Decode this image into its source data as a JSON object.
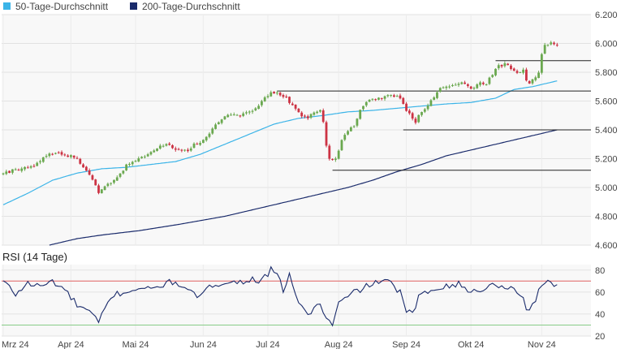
{
  "chart_data": [
    {
      "type": "candlestick",
      "legend": [
        {
          "name": "50-Tage-Durchschnitt",
          "color": "#3bb4e8"
        },
        {
          "name": "200-Tage-Durchschnitt",
          "color": "#1a2b6b"
        }
      ],
      "legend_placement": "top-left",
      "ylim": [
        4600,
        6200
      ],
      "yticks": [
        "6.200",
        "6.000",
        "5.800",
        "5.600",
        "5.400",
        "5.200",
        "5.000",
        "4.800",
        "4.600"
      ],
      "ytick_values": [
        6200,
        6000,
        5800,
        5600,
        5400,
        5200,
        5000,
        4800,
        4600
      ],
      "grid": true,
      "x_months": [
        "Mrz 24",
        "Apr 24",
        "Mai 24",
        "Jun 24",
        "Jul 24",
        "Aug 24",
        "Sep 24",
        "Okt 24",
        "Nov 24"
      ],
      "x_month_positions": [
        0,
        22,
        43,
        65,
        86,
        109,
        131,
        152,
        175
      ],
      "x_range": [
        0,
        191
      ],
      "colors": {
        "up": "#6aa84f",
        "down": "#cc3344",
        "ma50": "#3bb4e8",
        "ma200": "#1a2b6b",
        "levels": "#222222"
      },
      "close_anchors": [
        [
          0,
          5100
        ],
        [
          5,
          5130
        ],
        [
          10,
          5150
        ],
        [
          15,
          5240
        ],
        [
          20,
          5230
        ],
        [
          24,
          5200
        ],
        [
          27,
          5120
        ],
        [
          29,
          5060
        ],
        [
          31,
          4970
        ],
        [
          33,
          5000
        ],
        [
          36,
          5050
        ],
        [
          40,
          5150
        ],
        [
          43,
          5190
        ],
        [
          46,
          5210
        ],
        [
          49,
          5260
        ],
        [
          53,
          5300
        ],
        [
          56,
          5270
        ],
        [
          60,
          5250
        ],
        [
          62,
          5300
        ],
        [
          64,
          5310
        ],
        [
          67,
          5380
        ],
        [
          70,
          5450
        ],
        [
          73,
          5500
        ],
        [
          76,
          5500
        ],
        [
          79,
          5520
        ],
        [
          82,
          5540
        ],
        [
          85,
          5620
        ],
        [
          87,
          5650
        ],
        [
          89,
          5660
        ],
        [
          92,
          5620
        ],
        [
          95,
          5550
        ],
        [
          97,
          5500
        ],
        [
          99,
          5480
        ],
        [
          101,
          5520
        ],
        [
          103,
          5540
        ],
        [
          104,
          5450
        ],
        [
          105,
          5300
        ],
        [
          106,
          5200
        ],
        [
          108,
          5190
        ],
        [
          110,
          5320
        ],
        [
          112,
          5400
        ],
        [
          114,
          5420
        ],
        [
          116,
          5550
        ],
        [
          118,
          5600
        ],
        [
          121,
          5620
        ],
        [
          124,
          5630
        ],
        [
          127,
          5640
        ],
        [
          129,
          5620
        ],
        [
          131,
          5530
        ],
        [
          133,
          5480
        ],
        [
          134,
          5450
        ],
        [
          135,
          5500
        ],
        [
          137,
          5540
        ],
        [
          139,
          5600
        ],
        [
          142,
          5680
        ],
        [
          145,
          5700
        ],
        [
          148,
          5730
        ],
        [
          151,
          5700
        ],
        [
          153,
          5690
        ],
        [
          155,
          5730
        ],
        [
          157,
          5720
        ],
        [
          159,
          5790
        ],
        [
          161,
          5840
        ],
        [
          163,
          5860
        ],
        [
          165,
          5830
        ],
        [
          167,
          5800
        ],
        [
          169,
          5820
        ],
        [
          170,
          5750
        ],
        [
          171,
          5720
        ],
        [
          172,
          5740
        ],
        [
          174,
          5790
        ],
        [
          175,
          5920
        ],
        [
          176,
          5980
        ],
        [
          178,
          6000
        ],
        [
          180,
          5980
        ]
      ],
      "ma50_anchors": [
        [
          0,
          4880
        ],
        [
          8,
          4960
        ],
        [
          16,
          5050
        ],
        [
          24,
          5100
        ],
        [
          32,
          5130
        ],
        [
          40,
          5140
        ],
        [
          48,
          5160
        ],
        [
          56,
          5180
        ],
        [
          64,
          5230
        ],
        [
          72,
          5300
        ],
        [
          80,
          5370
        ],
        [
          88,
          5440
        ],
        [
          96,
          5480
        ],
        [
          104,
          5500
        ],
        [
          112,
          5525
        ],
        [
          120,
          5535
        ],
        [
          128,
          5550
        ],
        [
          136,
          5565
        ],
        [
          144,
          5580
        ],
        [
          152,
          5590
        ],
        [
          160,
          5620
        ],
        [
          166,
          5680
        ],
        [
          172,
          5700
        ],
        [
          180,
          5740
        ]
      ],
      "ma200_anchors": [
        [
          15,
          4600
        ],
        [
          24,
          4645
        ],
        [
          32,
          4670
        ],
        [
          44,
          4700
        ],
        [
          56,
          4740
        ],
        [
          72,
          4800
        ],
        [
          88,
          4880
        ],
        [
          104,
          4960
        ],
        [
          112,
          5000
        ],
        [
          120,
          5050
        ],
        [
          128,
          5110
        ],
        [
          136,
          5160
        ],
        [
          144,
          5220
        ],
        [
          152,
          5260
        ],
        [
          160,
          5300
        ],
        [
          168,
          5340
        ],
        [
          176,
          5380
        ],
        [
          180,
          5400
        ]
      ],
      "levels": [
        {
          "y": 5880,
          "x_start": 160,
          "x_end": 191
        },
        {
          "y": 5670,
          "x_start": 89,
          "x_end": 191
        },
        {
          "y": 5400,
          "x_start": 130,
          "x_end": 191
        },
        {
          "y": 5120,
          "x_start": 107,
          "x_end": 191
        }
      ]
    },
    {
      "type": "line",
      "title": "RSI (14 Tage)",
      "ylim": [
        20,
        85
      ],
      "yticks": [
        "80",
        "60",
        "40",
        "20"
      ],
      "ytick_values": [
        80,
        60,
        40,
        20
      ],
      "reference_lines": [
        {
          "y": 70,
          "color": "#e06060"
        },
        {
          "y": 30,
          "color": "#88cc88"
        }
      ],
      "series_color": "#1a2b6b",
      "anchors": [
        [
          0,
          70
        ],
        [
          4,
          58
        ],
        [
          8,
          68
        ],
        [
          12,
          65
        ],
        [
          16,
          70
        ],
        [
          20,
          62
        ],
        [
          24,
          48
        ],
        [
          28,
          42
        ],
        [
          31,
          32
        ],
        [
          33,
          45
        ],
        [
          36,
          58
        ],
        [
          40,
          60
        ],
        [
          44,
          64
        ],
        [
          48,
          62
        ],
        [
          52,
          67
        ],
        [
          56,
          70
        ],
        [
          60,
          60
        ],
        [
          64,
          56
        ],
        [
          68,
          66
        ],
        [
          72,
          70
        ],
        [
          76,
          68
        ],
        [
          80,
          72
        ],
        [
          84,
          70
        ],
        [
          87,
          80
        ],
        [
          89,
          75
        ],
        [
          91,
          62
        ],
        [
          93,
          76
        ],
        [
          95,
          58
        ],
        [
          97,
          45
        ],
        [
          99,
          40
        ],
        [
          101,
          45
        ],
        [
          103,
          50
        ],
        [
          105,
          35
        ],
        [
          107,
          30
        ],
        [
          109,
          50
        ],
        [
          112,
          55
        ],
        [
          114,
          60
        ],
        [
          118,
          65
        ],
        [
          122,
          70
        ],
        [
          126,
          68
        ],
        [
          129,
          60
        ],
        [
          131,
          42
        ],
        [
          133,
          40
        ],
        [
          135,
          55
        ],
        [
          139,
          62
        ],
        [
          143,
          66
        ],
        [
          148,
          67
        ],
        [
          152,
          60
        ],
        [
          156,
          63
        ],
        [
          160,
          67
        ],
        [
          164,
          65
        ],
        [
          167,
          60
        ],
        [
          169,
          55
        ],
        [
          170,
          44
        ],
        [
          172,
          48
        ],
        [
          174,
          60
        ],
        [
          176,
          68
        ],
        [
          178,
          70
        ],
        [
          180,
          66
        ]
      ]
    }
  ]
}
